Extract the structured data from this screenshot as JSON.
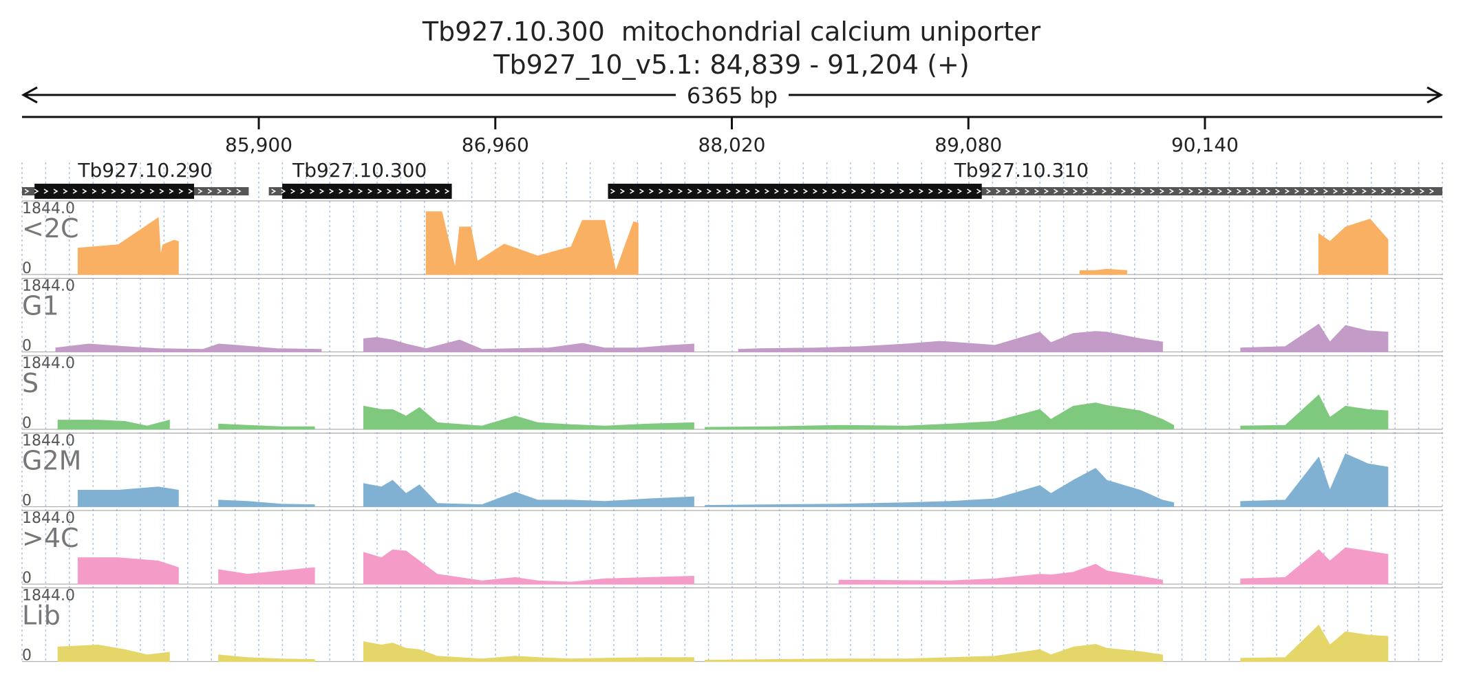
{
  "header": {
    "title_line1": "Tb927.10.300  mitochondrial calcium uniporter",
    "title_line2": "Tb927_10_v5.1: 84,839 - 91,204 (+)",
    "span_label": "6365 bp"
  },
  "chart_data": {
    "type": "area",
    "chromosome": "Tb927_10_v5.1",
    "xlim": [
      84839,
      91204
    ],
    "x_ticks": [
      85900,
      86960,
      88020,
      89080,
      90140
    ],
    "x_tick_labels": [
      "85,900",
      "86,960",
      "88,020",
      "89,080",
      "90,140"
    ],
    "grid": true,
    "genes": [
      {
        "name": "Tb927.10.290",
        "utr_start": 84839,
        "cds_start": 84895,
        "cds_end": 85610,
        "utr_end": 85855,
        "strand": "+"
      },
      {
        "name": "Tb927.10.300",
        "utr_start": 85945,
        "cds_start": 86005,
        "cds_end": 86765,
        "utr_end": 86765,
        "strand": "+"
      },
      {
        "name": "Tb927.10.310",
        "utr_start": 87465,
        "cds_start": 87465,
        "cds_end": 89140,
        "utr_end": 91204,
        "strand": "+"
      }
    ],
    "tracks": [
      {
        "name": "<2C",
        "color": "#f9b062",
        "ymax_label": "1844.0",
        "ymin_label": "0",
        "segments": [
          {
            "x": [
              85090,
              85270,
              85450,
              85460,
              85470,
              85520,
              85540
            ],
            "y": [
              0.4,
              0.45,
              0.86,
              0.28,
              0.45,
              0.52,
              0.5
            ]
          },
          {
            "x": [
              86650,
              86720,
              86780,
              86800,
              86850,
              86880,
              87000,
              87150,
              87300,
              87350,
              87450,
              87500,
              87580,
              87600
            ],
            "y": [
              0.95,
              0.95,
              0.1,
              0.72,
              0.72,
              0.2,
              0.46,
              0.28,
              0.42,
              0.82,
              0.82,
              0.05,
              0.8,
              0.78
            ]
          },
          {
            "x": [
              89580,
              89650,
              89700,
              89790
            ],
            "y": [
              0.06,
              0.06,
              0.08,
              0.06
            ]
          },
          {
            "x": [
              90650,
              90700,
              90770,
              90880,
              90960
            ],
            "y": [
              0.62,
              0.5,
              0.72,
              0.84,
              0.53
            ]
          }
        ]
      },
      {
        "name": "G1",
        "color": "#c39bc7",
        "ymax_label": "1844.0",
        "ymin_label": "0",
        "segments": [
          {
            "x": [
              84990,
              85140,
              85300,
              85450,
              85650,
              85720,
              85800,
              85980,
              86180
            ],
            "y": [
              0.06,
              0.12,
              0.08,
              0.05,
              0.04,
              0.12,
              0.1,
              0.05,
              0.04
            ]
          },
          {
            "x": [
              86370,
              86430,
              86500,
              86560,
              86650,
              86800,
              86900,
              87200,
              87350,
              87450,
              87600,
              87750,
              87850
            ],
            "y": [
              0.2,
              0.22,
              0.18,
              0.12,
              0.05,
              0.18,
              0.04,
              0.06,
              0.13,
              0.06,
              0.06,
              0.1,
              0.12
            ]
          },
          {
            "x": [
              88050,
              88150,
              88400,
              88600,
              88800,
              88950,
              89000,
              89200,
              89400,
              89450,
              89550,
              89650,
              89700,
              89850,
              89950
            ],
            "y": [
              0.04,
              0.05,
              0.06,
              0.08,
              0.12,
              0.16,
              0.15,
              0.1,
              0.3,
              0.14,
              0.28,
              0.31,
              0.3,
              0.2,
              0.15
            ]
          },
          {
            "x": [
              90300,
              90500,
              90650,
              90700,
              90770,
              90870,
              90960
            ],
            "y": [
              0.06,
              0.08,
              0.42,
              0.15,
              0.4,
              0.32,
              0.3
            ]
          }
        ]
      },
      {
        "name": "S",
        "color": "#7fc97f",
        "ymax_label": "1844.0",
        "ymin_label": "0",
        "segments": [
          {
            "x": [
              85000,
              85180,
              85300,
              85400,
              85500
            ],
            "y": [
              0.14,
              0.14,
              0.12,
              0.05,
              0.14
            ]
          },
          {
            "x": [
              85720,
              85850,
              86000,
              86150
            ],
            "y": [
              0.08,
              0.06,
              0.04,
              0.04
            ]
          },
          {
            "x": [
              86370,
              86450,
              86500,
              86560,
              86620,
              86700,
              86900,
              87050,
              87150,
              87300,
              87450,
              87650,
              87850
            ],
            "y": [
              0.35,
              0.3,
              0.3,
              0.2,
              0.33,
              0.1,
              0.05,
              0.2,
              0.1,
              0.07,
              0.05,
              0.08,
              0.1
            ]
          },
          {
            "x": [
              87900,
              88200,
              88500,
              88800,
              89000,
              89200,
              89400,
              89450,
              89550,
              89650,
              89700,
              89850,
              89950,
              90000
            ],
            "y": [
              0.03,
              0.04,
              0.06,
              0.05,
              0.08,
              0.12,
              0.3,
              0.15,
              0.35,
              0.4,
              0.36,
              0.28,
              0.15,
              0.06
            ]
          },
          {
            "x": [
              90300,
              90500,
              90650,
              90700,
              90770,
              90870,
              90960
            ],
            "y": [
              0.05,
              0.06,
              0.52,
              0.18,
              0.35,
              0.3,
              0.28
            ]
          }
        ]
      },
      {
        "name": "G2M",
        "color": "#80b1d3",
        "ymax_label": "1844.0",
        "ymin_label": "0",
        "segments": [
          {
            "x": [
              85090,
              85270,
              85450,
              85540
            ],
            "y": [
              0.25,
              0.25,
              0.3,
              0.25
            ]
          },
          {
            "x": [
              85720,
              85850,
              86000,
              86150
            ],
            "y": [
              0.1,
              0.08,
              0.04,
              0.03
            ]
          },
          {
            "x": [
              86370,
              86450,
              86500,
              86560,
              86620,
              86700,
              86900,
              87050,
              87150,
              87300,
              87450,
              87650,
              87850
            ],
            "y": [
              0.35,
              0.3,
              0.4,
              0.2,
              0.33,
              0.05,
              0.03,
              0.22,
              0.1,
              0.1,
              0.08,
              0.12,
              0.15
            ]
          },
          {
            "x": [
              87900,
              88200,
              88500,
              88800,
              89000,
              89200,
              89400,
              89450,
              89550,
              89650,
              89700,
              89850,
              89950,
              90000
            ],
            "y": [
              0.02,
              0.03,
              0.04,
              0.06,
              0.08,
              0.12,
              0.32,
              0.2,
              0.4,
              0.58,
              0.4,
              0.25,
              0.1,
              0.06
            ]
          },
          {
            "x": [
              90300,
              90500,
              90650,
              90700,
              90770,
              90870,
              90960
            ],
            "y": [
              0.08,
              0.1,
              0.75,
              0.25,
              0.8,
              0.65,
              0.6
            ]
          }
        ]
      },
      {
        "name": ">4C",
        "color": "#f59bc8",
        "ymax_label": "1844.0",
        "ymin_label": "0",
        "segments": [
          {
            "x": [
              85090,
              85270,
              85450,
              85540
            ],
            "y": [
              0.4,
              0.4,
              0.35,
              0.25
            ]
          },
          {
            "x": [
              85720,
              85850,
              86000,
              86150
            ],
            "y": [
              0.22,
              0.15,
              0.2,
              0.25
            ]
          },
          {
            "x": [
              86370,
              86450,
              86500,
              86560,
              86620,
              86700,
              86900,
              87050,
              87150,
              87300,
              87450,
              87650,
              87850
            ],
            "y": [
              0.48,
              0.4,
              0.52,
              0.5,
              0.35,
              0.15,
              0.05,
              0.1,
              0.05,
              0.03,
              0.08,
              0.1,
              0.12
            ]
          },
          {
            "x": [
              88500,
              89000,
              89200,
              89400,
              89450,
              89550,
              89650,
              89700,
              89850,
              89950
            ],
            "y": [
              0.06,
              0.05,
              0.08,
              0.15,
              0.14,
              0.18,
              0.3,
              0.2,
              0.12,
              0.06
            ]
          },
          {
            "x": [
              90300,
              90500,
              90650,
              90700,
              90770,
              90870,
              90960
            ],
            "y": [
              0.08,
              0.1,
              0.52,
              0.35,
              0.55,
              0.5,
              0.45
            ]
          }
        ]
      },
      {
        "name": "Lib",
        "color": "#e5d66a",
        "ymax_label": "1844.0",
        "ymin_label": "0",
        "segments": [
          {
            "x": [
              85000,
              85180,
              85300,
              85400,
              85500
            ],
            "y": [
              0.22,
              0.25,
              0.18,
              0.1,
              0.14
            ]
          },
          {
            "x": [
              85720,
              85850,
              86000,
              86150
            ],
            "y": [
              0.1,
              0.06,
              0.04,
              0.03
            ]
          },
          {
            "x": [
              86370,
              86450,
              86500,
              86560,
              86620,
              86700,
              86900,
              87050,
              87150,
              87300,
              87450,
              87650,
              87850
            ],
            "y": [
              0.3,
              0.25,
              0.28,
              0.2,
              0.18,
              0.08,
              0.04,
              0.08,
              0.06,
              0.04,
              0.05,
              0.06,
              0.06
            ]
          },
          {
            "x": [
              87900,
              88200,
              88500,
              88800,
              89000,
              89200,
              89400,
              89450,
              89550,
              89650,
              89700,
              89850,
              89950
            ],
            "y": [
              0.02,
              0.03,
              0.04,
              0.04,
              0.06,
              0.08,
              0.18,
              0.1,
              0.22,
              0.26,
              0.2,
              0.15,
              0.1
            ]
          },
          {
            "x": [
              90300,
              90500,
              90650,
              90700,
              90770,
              90870,
              90960
            ],
            "y": [
              0.05,
              0.06,
              0.55,
              0.25,
              0.45,
              0.4,
              0.38
            ]
          }
        ]
      }
    ]
  }
}
